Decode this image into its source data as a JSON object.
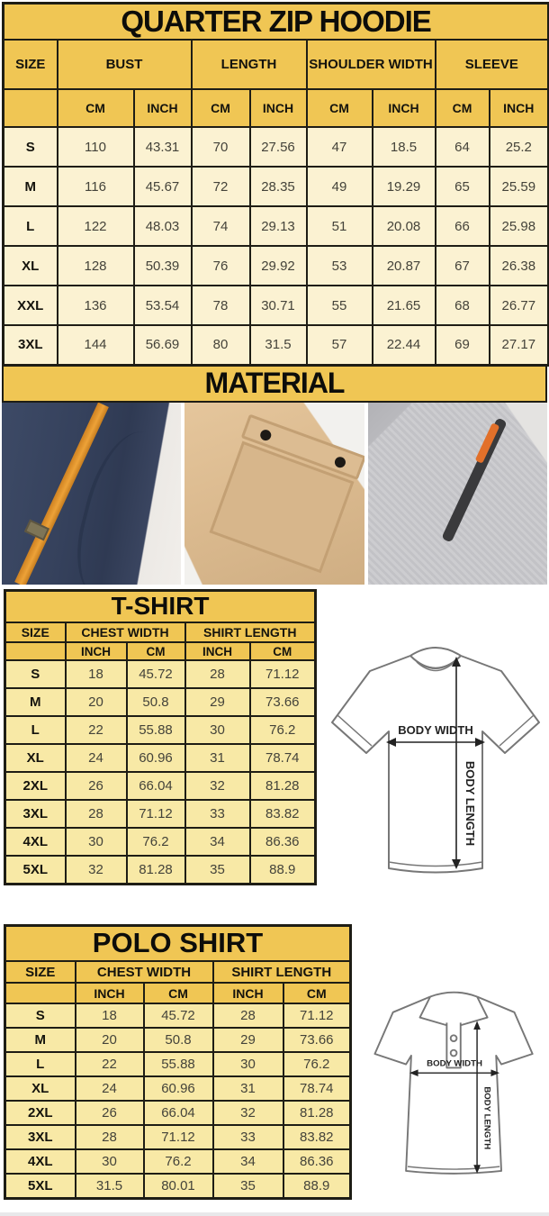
{
  "colors": {
    "banner_yellow": "#f0c654",
    "hoodie_row_cream": "#fbf2d2",
    "small_table_row_golden": "#f8e9a6",
    "table_border": "#1e1d15",
    "photo_navy": "#35415c",
    "photo_khaki": "#dcbb90",
    "photo_gray": "#c6c6c9",
    "accent_orange": "#e2932f"
  },
  "hoodie": {
    "title": "QUARTER ZIP HOODIE",
    "columns": [
      "SIZE",
      "BUST",
      "LENGTH",
      "SHOULDER WIDTH",
      "SLEEVE"
    ],
    "units": [
      "CM",
      "INCH",
      "CM",
      "INCH",
      "CM",
      "INCH",
      "CM",
      "INCH"
    ],
    "rows": [
      {
        "size": "S",
        "cells": [
          "110",
          "43.31",
          "70",
          "27.56",
          "47",
          "18.5",
          "64",
          "25.2"
        ]
      },
      {
        "size": "M",
        "cells": [
          "116",
          "45.67",
          "72",
          "28.35",
          "49",
          "19.29",
          "65",
          "25.59"
        ]
      },
      {
        "size": "L",
        "cells": [
          "122",
          "48.03",
          "74",
          "29.13",
          "51",
          "20.08",
          "66",
          "25.98"
        ]
      },
      {
        "size": "XL",
        "cells": [
          "128",
          "50.39",
          "76",
          "29.92",
          "53",
          "20.87",
          "67",
          "26.38"
        ]
      },
      {
        "size": "XXL",
        "cells": [
          "136",
          "53.54",
          "78",
          "30.71",
          "55",
          "21.65",
          "68",
          "26.77"
        ]
      },
      {
        "size": "3XL",
        "cells": [
          "144",
          "56.69",
          "80",
          "31.5",
          "57",
          "22.44",
          "69",
          "27.17"
        ]
      }
    ]
  },
  "material": {
    "title": "MATERIAL",
    "photos": [
      {
        "name": "navy fleece with orange drawstring"
      },
      {
        "name": "khaki fabric with snap-flap pocket"
      },
      {
        "name": "gray heather fleece with zipper"
      }
    ]
  },
  "tshirt": {
    "title": "T-SHIRT",
    "columns": [
      "SIZE",
      "CHEST WIDTH",
      "SHIRT LENGTH"
    ],
    "units": [
      "INCH",
      "CM",
      "INCH",
      "CM"
    ],
    "rows": [
      {
        "size": "S",
        "cells": [
          "18",
          "45.72",
          "28",
          "71.12"
        ]
      },
      {
        "size": "M",
        "cells": [
          "20",
          "50.8",
          "29",
          "73.66"
        ]
      },
      {
        "size": "L",
        "cells": [
          "22",
          "55.88",
          "30",
          "76.2"
        ]
      },
      {
        "size": "XL",
        "cells": [
          "24",
          "60.96",
          "31",
          "78.74"
        ]
      },
      {
        "size": "2XL",
        "cells": [
          "26",
          "66.04",
          "32",
          "81.28"
        ]
      },
      {
        "size": "3XL",
        "cells": [
          "28",
          "71.12",
          "33",
          "83.82"
        ]
      },
      {
        "size": "4XL",
        "cells": [
          "30",
          "76.2",
          "34",
          "86.36"
        ]
      },
      {
        "size": "5XL",
        "cells": [
          "32",
          "81.28",
          "35",
          "88.9"
        ]
      }
    ]
  },
  "polo": {
    "title": "POLO SHIRT",
    "columns": [
      "SIZE",
      "CHEST WIDTH",
      "SHIRT LENGTH"
    ],
    "units": [
      "INCH",
      "CM",
      "INCH",
      "CM"
    ],
    "rows": [
      {
        "size": "S",
        "cells": [
          "18",
          "45.72",
          "28",
          "71.12"
        ]
      },
      {
        "size": "M",
        "cells": [
          "20",
          "50.8",
          "29",
          "73.66"
        ]
      },
      {
        "size": "L",
        "cells": [
          "22",
          "55.88",
          "30",
          "76.2"
        ]
      },
      {
        "size": "XL",
        "cells": [
          "24",
          "60.96",
          "31",
          "78.74"
        ]
      },
      {
        "size": "2XL",
        "cells": [
          "26",
          "66.04",
          "32",
          "81.28"
        ]
      },
      {
        "size": "3XL",
        "cells": [
          "28",
          "71.12",
          "33",
          "83.82"
        ]
      },
      {
        "size": "4XL",
        "cells": [
          "30",
          "76.2",
          "34",
          "86.36"
        ]
      },
      {
        "size": "5XL",
        "cells": [
          "31.5",
          "80.01",
          "35",
          "88.9"
        ]
      }
    ]
  },
  "diagram": {
    "body_width_label": "BODY WIDTH",
    "body_length_label": "BODY LENGTH"
  }
}
